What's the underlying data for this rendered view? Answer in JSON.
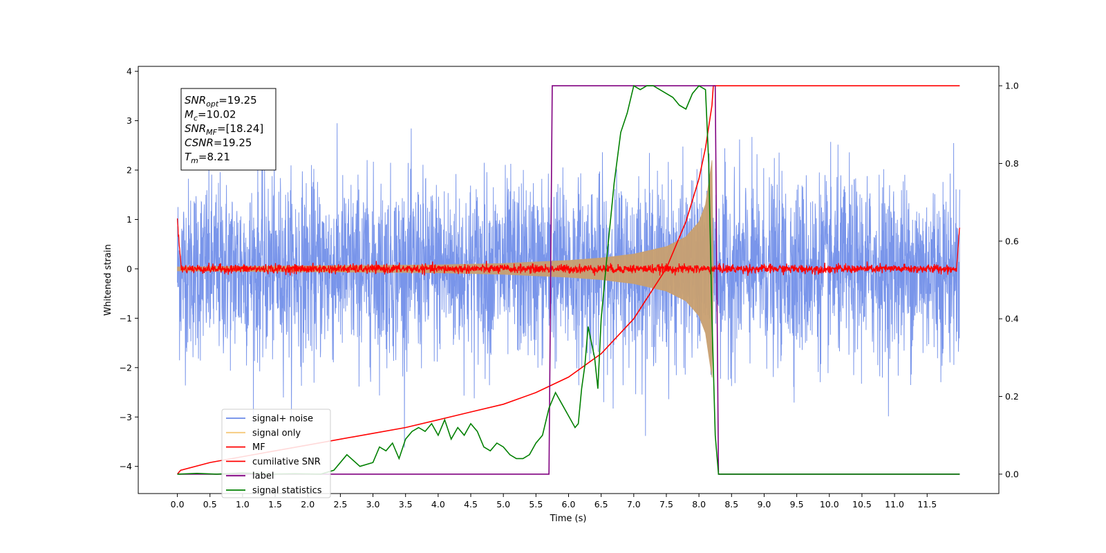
{
  "chart_data": {
    "type": "line",
    "title": "",
    "xlabel": "Time (s)",
    "ylabel": "Whitened strain",
    "xlim": [
      -0.6,
      12.6
    ],
    "ylim": [
      -4.55,
      4.1
    ],
    "ylim_right": [
      -0.05,
      1.05
    ],
    "xticks": [
      "0.0",
      "0.5",
      "1.0",
      "1.5",
      "2.0",
      "2.5",
      "3.0",
      "3.5",
      "4.0",
      "4.5",
      "5.0",
      "5.5",
      "6.0",
      "6.5",
      "7.0",
      "7.5",
      "8.0",
      "8.5",
      "9.0",
      "9.5",
      "10.0",
      "10.5",
      "11.0",
      "11.5"
    ],
    "yticks": [
      "4",
      "3",
      "2",
      "1",
      "0",
      "−1",
      "−2",
      "−3",
      "−4"
    ],
    "yticks_right": [
      "1.0",
      "0.8",
      "0.6",
      "0.4",
      "0.2",
      "0.0"
    ],
    "grid": false,
    "legend_position": "lower-left",
    "legend": [
      {
        "label": "signal+ noise",
        "color": "#6a8ae8"
      },
      {
        "label": "signal only",
        "color": "#f5c97a"
      },
      {
        "label": "MF",
        "color": "#ff0000"
      },
      {
        "label": "cumilative SNR",
        "color": "#ff0000"
      },
      {
        "label": "label",
        "color": "#800080"
      },
      {
        "label": "signal statistics",
        "color": "#008000"
      }
    ],
    "annotation": {
      "lines": [
        {
          "base": "SNR",
          "sub": "opt",
          "rest": "=19.25"
        },
        {
          "base": "M",
          "sub": "c",
          "rest": "=10.02"
        },
        {
          "base": "SNR",
          "sub": "MF",
          "rest": "=[18.24]"
        },
        {
          "base": "CSNR",
          "sub": "",
          "rest": "=19.25"
        },
        {
          "base": "T",
          "sub": "m",
          "rest": "=8.21"
        }
      ]
    },
    "series": [
      {
        "name": "signal+ noise",
        "axis": "left",
        "note": "white noise, approx. amplitude +/-2.6 peaks to +/-3.7, from 0 to 12 s",
        "range": [
          0,
          12
        ],
        "noise_amp": 0.9
      },
      {
        "name": "signal only",
        "axis": "left",
        "envelope_x": [
          0,
          2,
          4,
          5,
          6,
          6.5,
          7,
          7.5,
          7.8,
          8.0,
          8.1,
          8.2,
          8.22
        ],
        "envelope_y": [
          0.04,
          0.06,
          0.08,
          0.11,
          0.17,
          0.22,
          0.3,
          0.45,
          0.65,
          0.95,
          1.3,
          2.2,
          0
        ]
      },
      {
        "name": "MF",
        "axis": "left",
        "note": "near-zero noisy trace with edge spikes to 1.0 at t=0 and t=12",
        "range": [
          0,
          12
        ]
      },
      {
        "name": "cumilative SNR",
        "axis": "right",
        "x": [
          0,
          0.05,
          0.5,
          1,
          1.5,
          2,
          2.5,
          3,
          3.5,
          4,
          4.5,
          5,
          5.5,
          6,
          6.5,
          7,
          7.5,
          7.8,
          8.0,
          8.1,
          8.2,
          8.22,
          12.0
        ],
        "y": [
          0.0,
          0.01,
          0.03,
          0.045,
          0.06,
          0.075,
          0.09,
          0.105,
          0.12,
          0.14,
          0.16,
          0.18,
          0.21,
          0.25,
          0.31,
          0.4,
          0.53,
          0.65,
          0.76,
          0.84,
          0.95,
          1.0,
          1.0
        ]
      },
      {
        "name": "label",
        "axis": "right",
        "x": [
          0,
          5.7,
          5.75,
          8.25,
          8.3,
          12.0
        ],
        "y": [
          0,
          0,
          1,
          1,
          0,
          0
        ]
      },
      {
        "name": "signal statistics",
        "axis": "right",
        "x": [
          0,
          0.3,
          0.6,
          1.0,
          1.4,
          1.8,
          2.2,
          2.4,
          2.6,
          2.8,
          3.0,
          3.1,
          3.2,
          3.3,
          3.4,
          3.5,
          3.6,
          3.7,
          3.8,
          3.9,
          4.0,
          4.1,
          4.2,
          4.3,
          4.4,
          4.5,
          4.6,
          4.7,
          4.8,
          4.9,
          5.0,
          5.1,
          5.2,
          5.3,
          5.4,
          5.5,
          5.6,
          5.7,
          5.8,
          5.9,
          6.0,
          6.1,
          6.15,
          6.2,
          6.25,
          6.3,
          6.35,
          6.4,
          6.45,
          6.5,
          6.6,
          6.7,
          6.8,
          6.9,
          7.0,
          7.1,
          7.2,
          7.3,
          7.4,
          7.5,
          7.6,
          7.7,
          7.8,
          7.9,
          8.0,
          8.1,
          8.15,
          8.2,
          8.25,
          8.3,
          8.35,
          12.0
        ],
        "y": [
          0.0,
          0.002,
          0.0,
          0.003,
          0.0,
          0.001,
          0.0,
          0.01,
          0.05,
          0.02,
          0.03,
          0.07,
          0.06,
          0.08,
          0.04,
          0.09,
          0.11,
          0.12,
          0.11,
          0.13,
          0.1,
          0.14,
          0.09,
          0.12,
          0.1,
          0.13,
          0.11,
          0.07,
          0.06,
          0.08,
          0.07,
          0.05,
          0.04,
          0.04,
          0.05,
          0.08,
          0.1,
          0.17,
          0.21,
          0.18,
          0.15,
          0.12,
          0.13,
          0.22,
          0.28,
          0.38,
          0.34,
          0.3,
          0.22,
          0.4,
          0.58,
          0.75,
          0.88,
          0.93,
          1.0,
          0.99,
          1.0,
          1.0,
          0.99,
          0.98,
          0.97,
          0.95,
          0.94,
          0.98,
          1.0,
          0.99,
          0.8,
          0.4,
          0.1,
          0.0,
          0.0,
          0.0
        ]
      }
    ]
  }
}
